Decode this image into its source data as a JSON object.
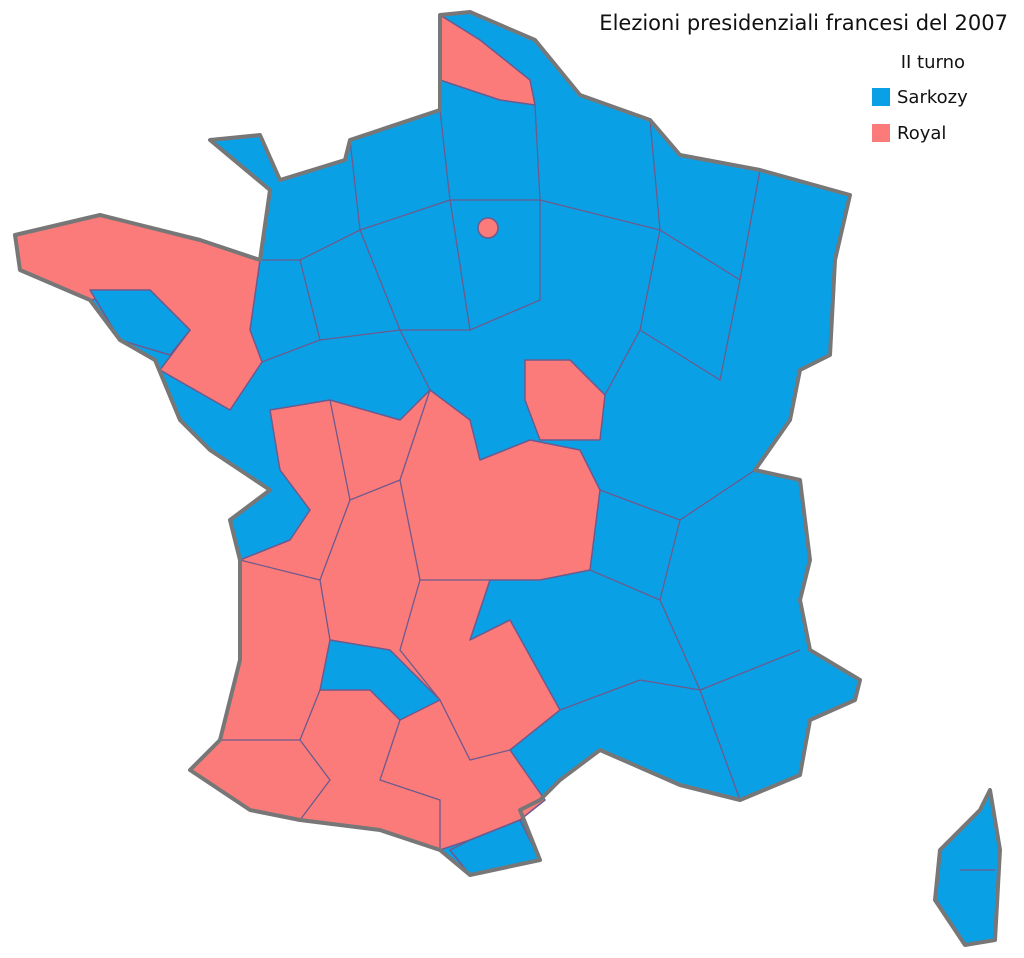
{
  "header": {
    "title": "Elezioni presidenziali francesi del 2007",
    "subtitle": "II turno"
  },
  "legend": [
    {
      "name": "Sarkozy",
      "color": "#0aa0e6"
    },
    {
      "name": "Royal",
      "color": "#fb7b7b"
    }
  ]
}
